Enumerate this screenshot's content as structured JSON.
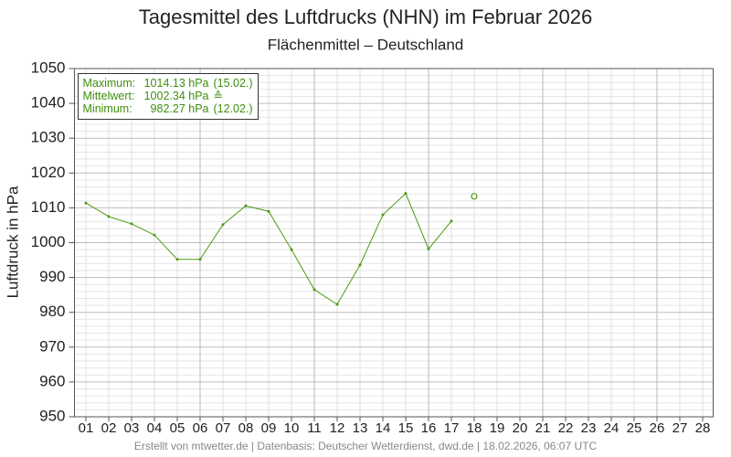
{
  "chart_data": {
    "type": "line",
    "title": "Tagesmittel des Luftdrucks (NHN) im Februar 2026",
    "subtitle": "Flächenmittel – Deutschland",
    "y_label": "Luftdruck in hPa",
    "footer": "Erstellt von mtwetter.de | Datenbasis: Deutscher Wetterdienst, dwd.de | 18.02.2026, 06:07 UTC",
    "categories": [
      "01",
      "02",
      "03",
      "04",
      "05",
      "06",
      "07",
      "08",
      "09",
      "10",
      "11",
      "12",
      "13",
      "14",
      "15",
      "16",
      "17",
      "18",
      "19",
      "20",
      "21",
      "22",
      "23",
      "24",
      "25",
      "26",
      "27",
      "28"
    ],
    "series": [
      {
        "color": "#4f9a12",
        "marker": "dot",
        "values": [
          1011.4,
          1007.5,
          1005.4,
          1002.2,
          995.2,
          995.2,
          1005.2,
          1010.6,
          1009.0,
          998.0,
          986.5,
          982.27,
          993.6,
          1008.0,
          1014.13,
          998.2,
          1006.2,
          null,
          null,
          null,
          null,
          null,
          null,
          null,
          null,
          null,
          null,
          null
        ]
      },
      {
        "color": "#4f9a12",
        "marker": "open",
        "values": [
          null,
          null,
          null,
          null,
          null,
          null,
          null,
          null,
          null,
          null,
          null,
          null,
          null,
          null,
          null,
          null,
          null,
          1013.3,
          null,
          null,
          null,
          null,
          null,
          null,
          null,
          null,
          null,
          null
        ]
      }
    ],
    "ylim": [
      950,
      1050
    ],
    "yticks": [
      950,
      960,
      970,
      980,
      990,
      1000,
      1010,
      1020,
      1030,
      1040,
      1050
    ],
    "minor_yticks": [
      952,
      954,
      956,
      958,
      962,
      964,
      966,
      968,
      972,
      974,
      976,
      978,
      982,
      984,
      986,
      988,
      992,
      994,
      996,
      998,
      1002,
      1004,
      1006,
      1008,
      1012,
      1014,
      1016,
      1018,
      1022,
      1024,
      1026,
      1028,
      1032,
      1034,
      1036,
      1038,
      1042,
      1044,
      1046,
      1048
    ],
    "x_major_grid": [
      "06",
      "11",
      "16",
      "21",
      "26"
    ],
    "grid": true,
    "legend_box": [
      {
        "label": "Maximum:",
        "value": "1014.13 hPa",
        "note": "(15.02.)"
      },
      {
        "label": "Mittelwert:",
        "value": "1002.34 hPa",
        "note": "≙"
      },
      {
        "label": "Minimum:",
        "value": "982.27 hPa",
        "note": "(12.02.)"
      }
    ]
  }
}
